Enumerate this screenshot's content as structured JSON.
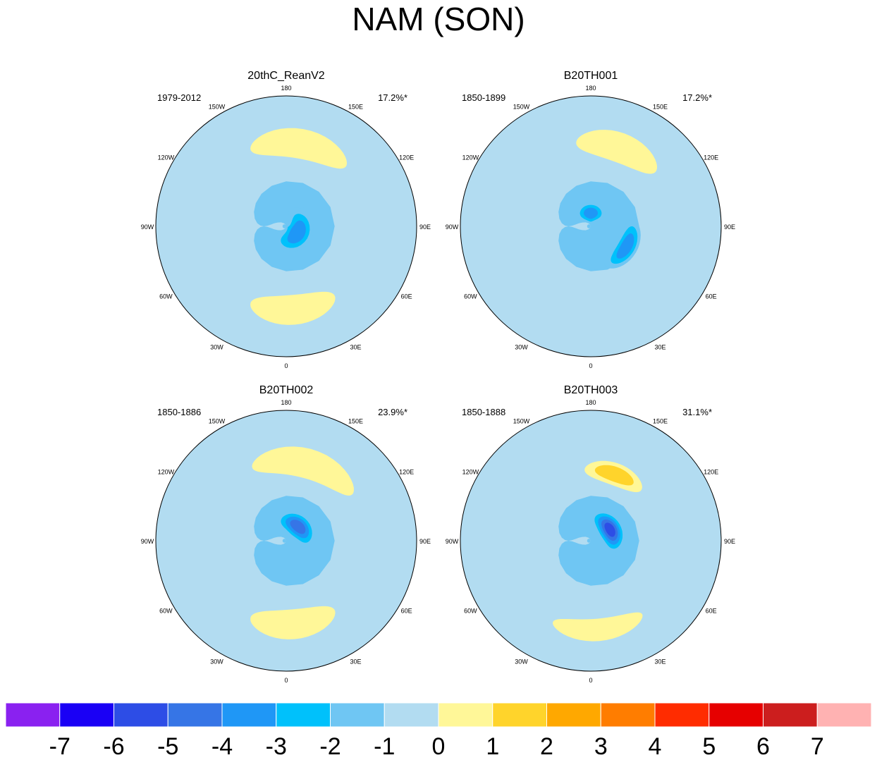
{
  "title": "NAM (SON)",
  "chart_data": {
    "type": "polar-stereographic contour map panels",
    "panels": [
      {
        "title": "20thC_ReanV2",
        "period": "1979-2012",
        "variance": "17.2%*",
        "features": [
          {
            "level": -4,
            "lon": 105,
            "lat": 82,
            "dlon": 55,
            "dlat": 7
          },
          {
            "level": -3,
            "lon": 60,
            "lat": 83,
            "dlon": 110,
            "dlat": 8
          },
          {
            "level": 1,
            "lon": 170,
            "lat": 45,
            "dlon": 35,
            "dlat": 8
          },
          {
            "level": 1,
            "lon": 5,
            "lat": 45,
            "dlon": 30,
            "dlat": 8
          }
        ]
      },
      {
        "title": "B20TH001",
        "period": "1850-1899",
        "variance": "17.2%*",
        "features": [
          {
            "level": -3,
            "lon": 180,
            "lat": 83,
            "dlon": 60,
            "dlat": 6
          },
          {
            "level": -3,
            "lon": 60,
            "lat": 68,
            "dlon": 40,
            "dlat": 6
          },
          {
            "level": 1,
            "lon": 160,
            "lat": 45,
            "dlon": 30,
            "dlat": 8
          }
        ]
      },
      {
        "title": "B20TH002",
        "period": "1850-1886",
        "variance": "23.9%*",
        "features": [
          {
            "level": -4,
            "lon": 140,
            "lat": 80,
            "dlon": 70,
            "dlat": 7
          },
          {
            "level": 1,
            "lon": 165,
            "lat": 47,
            "dlon": 40,
            "dlat": 8
          },
          {
            "level": 1,
            "lon": 5,
            "lat": 45,
            "dlon": 30,
            "dlat": 8
          }
        ]
      },
      {
        "title": "B20TH003",
        "period": "1850-1888",
        "variance": "31.1%*",
        "features": [
          {
            "level": -5,
            "lon": 120,
            "lat": 78,
            "dlon": 60,
            "dlat": 7
          },
          {
            "level": 2,
            "lon": 160,
            "lat": 52,
            "dlon": 25,
            "dlat": 6
          },
          {
            "level": 1,
            "lon": 5,
            "lat": 42,
            "dlon": 30,
            "dlat": 6
          }
        ]
      }
    ],
    "lon_labels": [
      "180",
      "150E",
      "120E",
      "90E",
      "60E",
      "30E",
      "0",
      "30W",
      "60W",
      "90W",
      "120W",
      "150W"
    ],
    "colorbar": {
      "ticks": [
        "-7",
        "-6",
        "-5",
        "-4",
        "-3",
        "-2",
        "-1",
        "0",
        "1",
        "2",
        "3",
        "4",
        "5",
        "6",
        "7"
      ],
      "colors": [
        "#8a21f0",
        "#1a00f5",
        "#2d4de6",
        "#3675e6",
        "#1f97f6",
        "#00c1fb",
        "#6fc6f3",
        "#b2dcf1",
        "#fff798",
        "#ffd42b",
        "#ffa800",
        "#ff7d00",
        "#ff2c00",
        "#e60000",
        "#cc1e1e",
        "#ffb2b2"
      ]
    }
  }
}
